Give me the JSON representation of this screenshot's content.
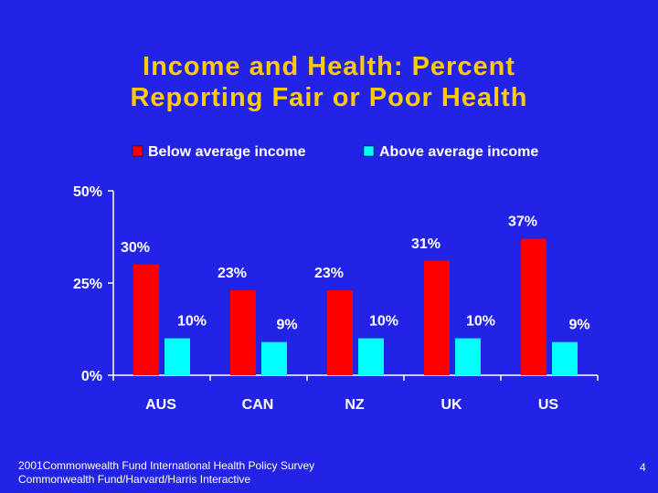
{
  "slide": {
    "title_line1": "Income and Health: Percent",
    "title_line2": "Reporting Fair or Poor Health",
    "footer_line1": "2001Commonwealth Fund International Health Policy Survey",
    "footer_line2": "Commonwealth Fund/Harvard/Harris Interactive",
    "page_number": "4"
  },
  "colors": {
    "background": "#2323e6",
    "title": "#ffcc00",
    "series_below": "#ff0000",
    "series_above": "#00ffff",
    "text": "#ffffff",
    "axis": "#ffffff"
  },
  "chart_data": {
    "type": "bar",
    "categories": [
      "AUS",
      "CAN",
      "NZ",
      "UK",
      "US"
    ],
    "series": [
      {
        "name": "Below average income",
        "values": [
          30,
          23,
          23,
          31,
          37
        ],
        "labels": [
          "30%",
          "23%",
          "23%",
          "31%",
          "37%"
        ]
      },
      {
        "name": "Above average income",
        "values": [
          10,
          9,
          10,
          10,
          9
        ],
        "labels": [
          "10%",
          "9%",
          "10%",
          "10%",
          "9%"
        ]
      }
    ],
    "ylim": [
      0,
      50
    ],
    "yticks": [
      0,
      25,
      50
    ],
    "ytick_labels": [
      "0%",
      "25%",
      "50%"
    ],
    "legend_position": "top",
    "grid": false
  }
}
